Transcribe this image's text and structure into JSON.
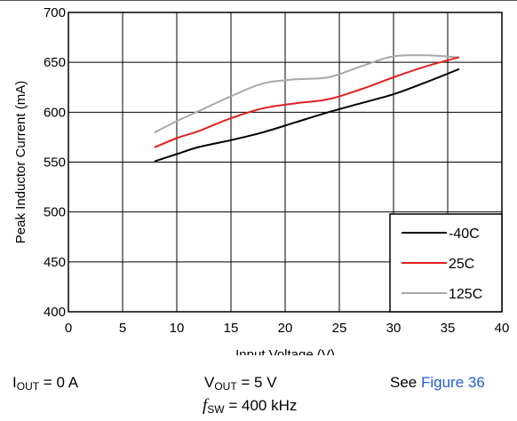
{
  "chart_data": {
    "type": "line",
    "xlabel": "Input Voltage (V)",
    "ylabel": "Peak Inductor Current (mA)",
    "xlim": [
      0,
      40
    ],
    "ylim": [
      400,
      700
    ],
    "xticks": [
      0,
      5,
      10,
      15,
      20,
      25,
      30,
      35,
      40
    ],
    "yticks": [
      400,
      450,
      500,
      550,
      600,
      650,
      700
    ],
    "grid": true,
    "legend_position": "bottom-right",
    "series": [
      {
        "name": "-40C",
        "color": "#000000",
        "x": [
          8,
          10,
          12,
          15,
          18,
          21,
          24,
          27,
          30,
          33,
          36
        ],
        "y": [
          551,
          558,
          565,
          572,
          580,
          590,
          600,
          609,
          618,
          630,
          643
        ]
      },
      {
        "name": "25C",
        "color": "#e02020",
        "x": [
          8,
          10,
          12,
          15,
          18,
          21,
          24,
          27,
          30,
          33,
          36
        ],
        "y": [
          565,
          574,
          581,
          594,
          604,
          609,
          613,
          623,
          635,
          646,
          655
        ]
      },
      {
        "name": "125C",
        "color": "#a8a8a8",
        "x": [
          8,
          10,
          12,
          15,
          18,
          21,
          24,
          27,
          30,
          33,
          36
        ],
        "y": [
          580,
          591,
          601,
          616,
          629,
          633,
          635,
          646,
          656,
          657,
          655
        ]
      }
    ]
  },
  "conditions": {
    "iout_main": "I",
    "iout_sub": "OUT",
    "iout_value": " = 0 A",
    "vout_main": "V",
    "vout_sub": "OUT",
    "vout_value": " = 5 V",
    "see_prefix": "See ",
    "see_link": "Figure 36",
    "fsw_main": "f",
    "fsw_sub": "SW",
    "fsw_value": " = 400 kHz"
  }
}
